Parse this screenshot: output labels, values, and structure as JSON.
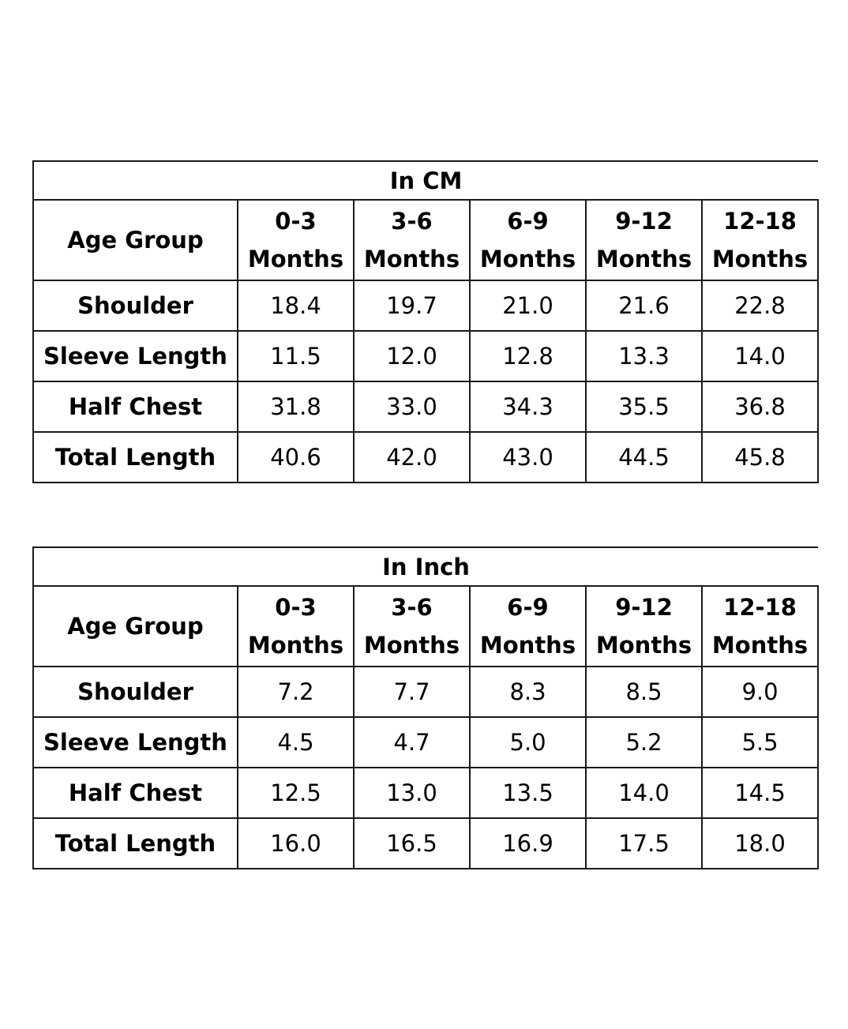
{
  "tables": [
    {
      "title": "In CM",
      "header_label": "Age Group",
      "columns": [
        {
          "top": "0-3",
          "bottom": "Months"
        },
        {
          "top": "3-6",
          "bottom": "Months"
        },
        {
          "top": "6-9",
          "bottom": "Months"
        },
        {
          "top": "9-12",
          "bottom": "Months"
        },
        {
          "top": "12-18",
          "bottom": "Months"
        }
      ],
      "rows": [
        {
          "label": "Shoulder",
          "values": [
            "18.4",
            "19.7",
            "21.0",
            "21.6",
            "22.8"
          ]
        },
        {
          "label": "Sleeve Length",
          "values": [
            "11.5",
            "12.0",
            "12.8",
            "13.3",
            "14.0"
          ]
        },
        {
          "label": "Half Chest",
          "values": [
            "31.8",
            "33.0",
            "34.3",
            "35.5",
            "36.8"
          ]
        },
        {
          "label": "Total Length",
          "values": [
            "40.6",
            "42.0",
            "43.0",
            "44.5",
            "45.8"
          ]
        }
      ]
    },
    {
      "title": "In Inch",
      "header_label": "Age Group",
      "columns": [
        {
          "top": "0-3",
          "bottom": "Months"
        },
        {
          "top": "3-6",
          "bottom": "Months"
        },
        {
          "top": "6-9",
          "bottom": "Months"
        },
        {
          "top": "9-12",
          "bottom": "Months"
        },
        {
          "top": "12-18",
          "bottom": "Months"
        }
      ],
      "rows": [
        {
          "label": "Shoulder",
          "values": [
            "7.2",
            "7.7",
            "8.3",
            "8.5",
            "9.0"
          ]
        },
        {
          "label": "Sleeve Length",
          "values": [
            "4.5",
            "4.7",
            "5.0",
            "5.2",
            "5.5"
          ]
        },
        {
          "label": "Half Chest",
          "values": [
            "12.5",
            "13.0",
            "13.5",
            "14.0",
            "14.5"
          ]
        },
        {
          "label": "Total Length",
          "values": [
            "16.0",
            "16.5",
            "16.9",
            "17.5",
            "18.0"
          ]
        }
      ]
    }
  ]
}
